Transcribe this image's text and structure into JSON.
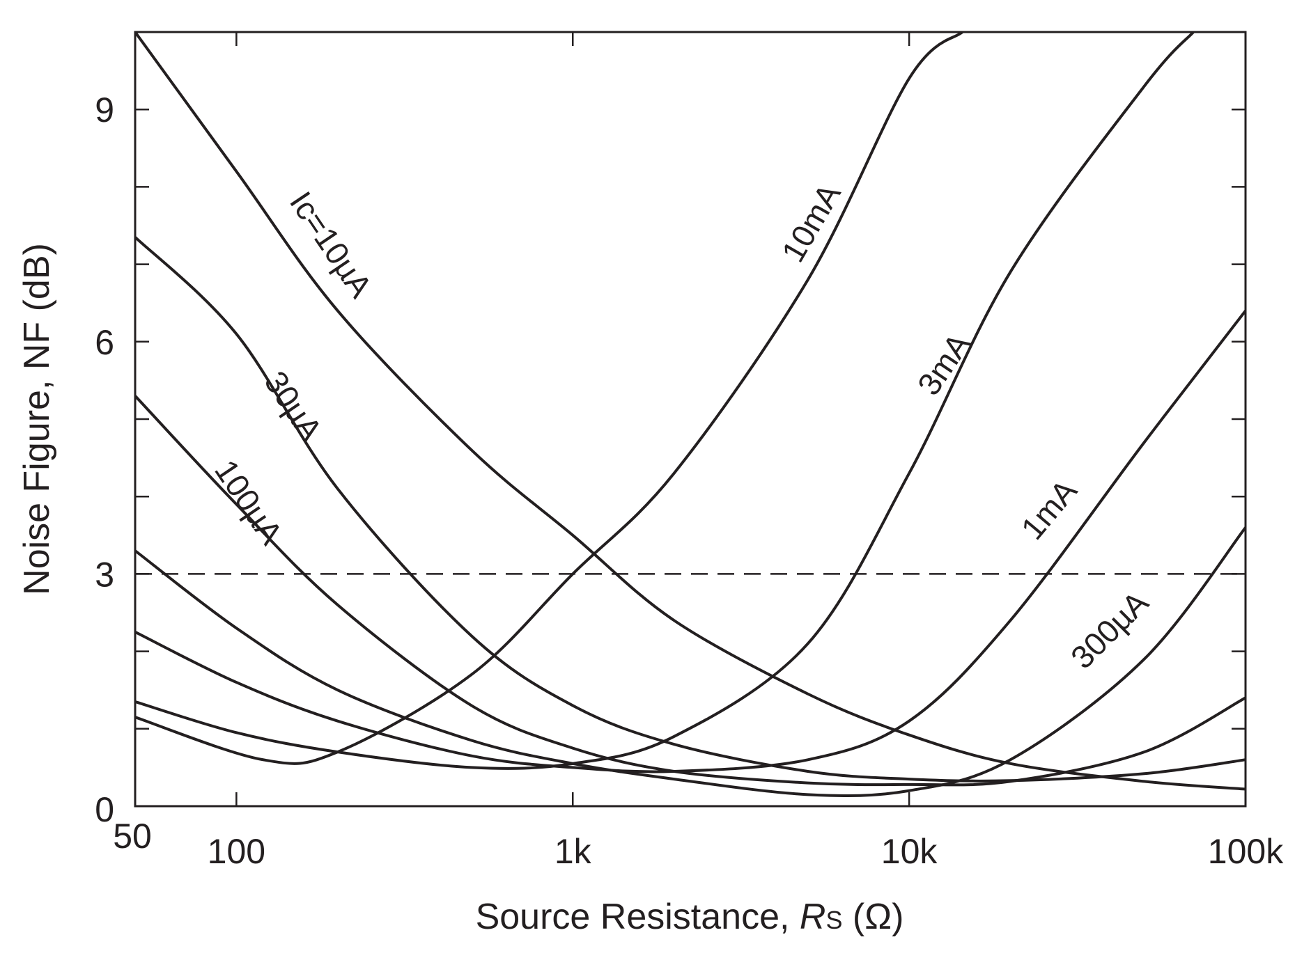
{
  "chart_data": {
    "type": "line",
    "title": "",
    "xlabel": "Source Resistance, R_S (Ω)",
    "xlabel_parts": {
      "pre": "Source Resistance, ",
      "var": "R",
      "sub": "S",
      "post": " (Ω)"
    },
    "ylabel": "Noise Figure, NF (dB)",
    "xscale": "log",
    "xlim": [
      50,
      100000
    ],
    "ylim": [
      0,
      10
    ],
    "x_ticks": [
      {
        "value": 50,
        "label": "50"
      },
      {
        "value": 100,
        "label": "100"
      },
      {
        "value": 1000,
        "label": "1k"
      },
      {
        "value": 10000,
        "label": "10k"
      },
      {
        "value": 100000,
        "label": "100k"
      }
    ],
    "y_ticks": [
      {
        "value": 0,
        "label": "0"
      },
      {
        "value": 3,
        "label": "3"
      },
      {
        "value": 6,
        "label": "6"
      },
      {
        "value": 9,
        "label": "9"
      }
    ],
    "y_minor_step": 1,
    "grid": false,
    "reference_line": {
      "y": 3,
      "style": "dashed"
    },
    "line_color": "#231f20",
    "series": [
      {
        "name": "Ic=10µA",
        "label": "Ic=10µA",
        "x": [
          50,
          100,
          200,
          500,
          1000,
          2000,
          5000,
          10000,
          20000,
          50000,
          100000
        ],
        "y": [
          10.0,
          8.2,
          6.4,
          4.6,
          3.5,
          2.4,
          1.45,
          0.92,
          0.55,
          0.32,
          0.22
        ]
      },
      {
        "name": "30µA",
        "label": "30µA",
        "x": [
          50,
          100,
          200,
          500,
          1000,
          2000,
          5000,
          10000,
          20000,
          50000,
          100000
        ],
        "y": [
          7.35,
          6.1,
          4.1,
          2.2,
          1.3,
          0.8,
          0.45,
          0.35,
          0.33,
          0.42,
          0.6
        ]
      },
      {
        "name": "100µA",
        "label": "100µA",
        "x": [
          50,
          100,
          200,
          500,
          1000,
          2000,
          5000,
          10000,
          20000,
          50000,
          100000
        ],
        "y": [
          5.3,
          3.9,
          2.6,
          1.3,
          0.75,
          0.45,
          0.3,
          0.28,
          0.32,
          0.7,
          1.4
        ]
      },
      {
        "name": "300µA",
        "label": "300µA",
        "x": [
          50,
          100,
          200,
          500,
          1000,
          2000,
          5000,
          10000,
          20000,
          50000,
          100000
        ],
        "y": [
          3.3,
          2.3,
          1.5,
          0.85,
          0.55,
          0.35,
          0.15,
          0.2,
          0.6,
          1.9,
          3.6
        ]
      },
      {
        "name": "1mA",
        "label": "1mA",
        "x": [
          50,
          100,
          200,
          500,
          1000,
          2000,
          5000,
          10000,
          20000,
          50000,
          100000
        ],
        "y": [
          2.25,
          1.6,
          1.1,
          0.65,
          0.5,
          0.45,
          0.6,
          1.1,
          2.4,
          4.7,
          6.4
        ]
      },
      {
        "name": "3mA",
        "label": "3mA",
        "x": [
          50,
          100,
          200,
          500,
          1000,
          2000,
          5000,
          10000,
          20000,
          50000,
          70000
        ],
        "y": [
          1.35,
          0.95,
          0.7,
          0.5,
          0.55,
          0.9,
          2.1,
          4.3,
          6.9,
          9.3,
          10.0
        ]
      },
      {
        "name": "10mA",
        "label": "10mA",
        "x": [
          50,
          120,
          200,
          500,
          1000,
          2000,
          5000,
          10000,
          14400
        ],
        "y": [
          1.15,
          0.6,
          0.7,
          1.7,
          3.0,
          4.3,
          6.8,
          9.4,
          10.0
        ]
      }
    ]
  }
}
